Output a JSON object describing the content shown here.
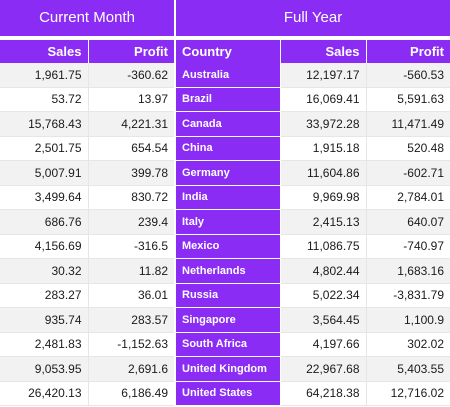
{
  "titles": {
    "current_month": "Current Month",
    "full_year": "Full Year"
  },
  "current_month": {
    "headers": {
      "sales": "Sales",
      "profit": "Profit"
    },
    "rows": [
      [
        "1,961.75",
        "-360.62"
      ],
      [
        "53.72",
        "13.97"
      ],
      [
        "15,768.43",
        "4,221.31"
      ],
      [
        "2,501.75",
        "654.54"
      ],
      [
        "5,007.91",
        "399.78"
      ],
      [
        "3,499.64",
        "830.72"
      ],
      [
        "686.76",
        "239.4"
      ],
      [
        "4,156.69",
        "-316.5"
      ],
      [
        "30.32",
        "11.82"
      ],
      [
        "283.27",
        "36.01"
      ],
      [
        "935.74",
        "283.57"
      ],
      [
        "2,481.83",
        "-1,152.63"
      ],
      [
        "9,053.95",
        "2,691.6"
      ],
      [
        "26,420.13",
        "6,186.49"
      ]
    ]
  },
  "full_year": {
    "headers": {
      "country": "Country",
      "sales": "Sales",
      "profit": "Profit"
    },
    "rows": [
      [
        "Australia",
        "12,197.17",
        "-560.53"
      ],
      [
        "Brazil",
        "16,069.41",
        "5,591.63"
      ],
      [
        "Canada",
        "33,972.28",
        "11,471.49"
      ],
      [
        "China",
        "1,915.18",
        "520.48"
      ],
      [
        "Germany",
        "11,604.86",
        "-602.71"
      ],
      [
        "India",
        "9,969.98",
        "2,784.01"
      ],
      [
        "Italy",
        "2,415.13",
        "640.07"
      ],
      [
        "Mexico",
        "11,086.75",
        "-740.97"
      ],
      [
        "Netherlands",
        "4,802.44",
        "1,683.16"
      ],
      [
        "Russia",
        "5,022.34",
        "-3,831.79"
      ],
      [
        "Singapore",
        "3,564.45",
        "1,100.9"
      ],
      [
        "South Africa",
        "4,197.66",
        "302.02"
      ],
      [
        "United Kingdom",
        "22,967.68",
        "5,403.55"
      ],
      [
        "United States",
        "64,218.38",
        "12,716.02"
      ]
    ]
  },
  "colors": {
    "accent": "#8b2cf5",
    "row_alt": "#f2f2f2"
  }
}
